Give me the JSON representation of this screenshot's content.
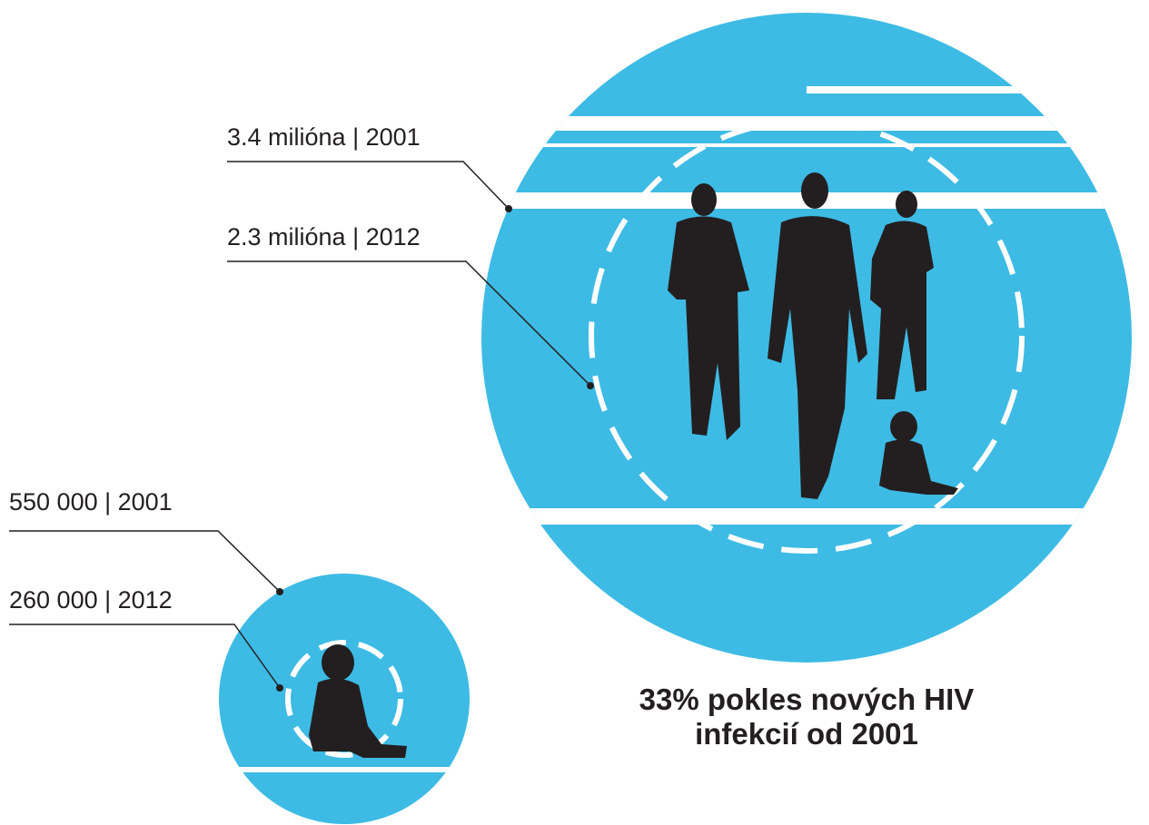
{
  "labels": [
    {
      "text": "3.4 milióna | 2001"
    },
    {
      "text": "2.3 milióna | 2012"
    },
    {
      "text": "550 000 | 2001"
    },
    {
      "text": "260 000 | 2012"
    }
  ],
  "caption": {
    "line1": "33% pokles nových HIV",
    "line2": "infekcií od 2001"
  }
}
